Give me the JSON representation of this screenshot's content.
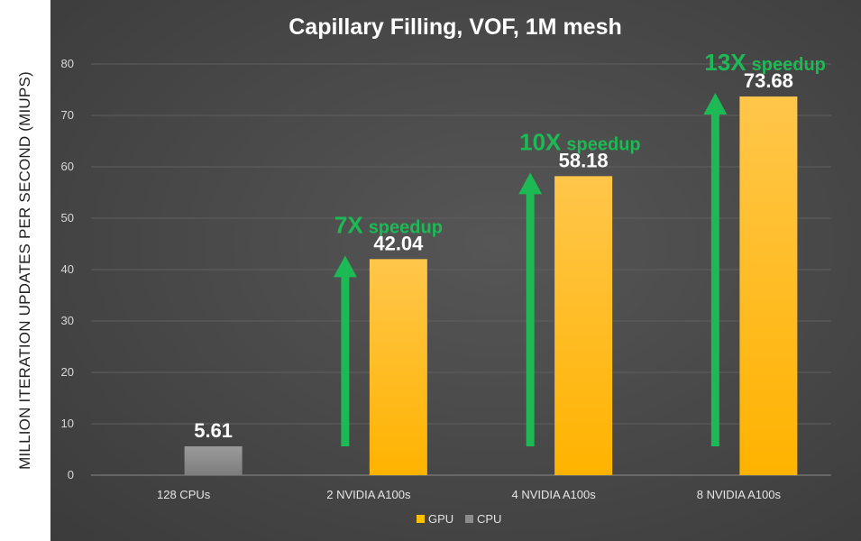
{
  "chart_data": {
    "type": "bar",
    "title": "Capillary Filling, VOF, 1M mesh",
    "ylabel": "MILLION ITERATION UPDATES PER SECOND (MIUPS)",
    "xlabel": "",
    "ylim": [
      0,
      80
    ],
    "yticks": [
      0,
      10,
      20,
      30,
      40,
      50,
      60,
      70,
      80
    ],
    "grid": true,
    "legend_position": "bottom",
    "categories": [
      "128 CPUs",
      "2 NVIDIA A100s",
      "4 NVIDIA A100s",
      "8 NVIDIA A100s"
    ],
    "series": [
      {
        "name": "GPU",
        "values": [
          null,
          42.04,
          58.18,
          73.68
        ],
        "color": "#ffc000"
      },
      {
        "name": "CPU",
        "values": [
          5.61,
          null,
          null,
          null
        ],
        "color": "#8c8c8c"
      }
    ],
    "data_labels": [
      "5.61",
      "42.04",
      "58.18",
      "73.68"
    ],
    "annotations": [
      {
        "category": "2 NVIDIA A100s",
        "big": "7X",
        "small": "speedup",
        "color": "#1db954"
      },
      {
        "category": "4 NVIDIA A100s",
        "big": "10X",
        "small": "speedup",
        "color": "#1db954"
      },
      {
        "category": "8 NVIDIA A100s",
        "big": "13X",
        "small": "speedup",
        "color": "#1db954"
      }
    ]
  }
}
